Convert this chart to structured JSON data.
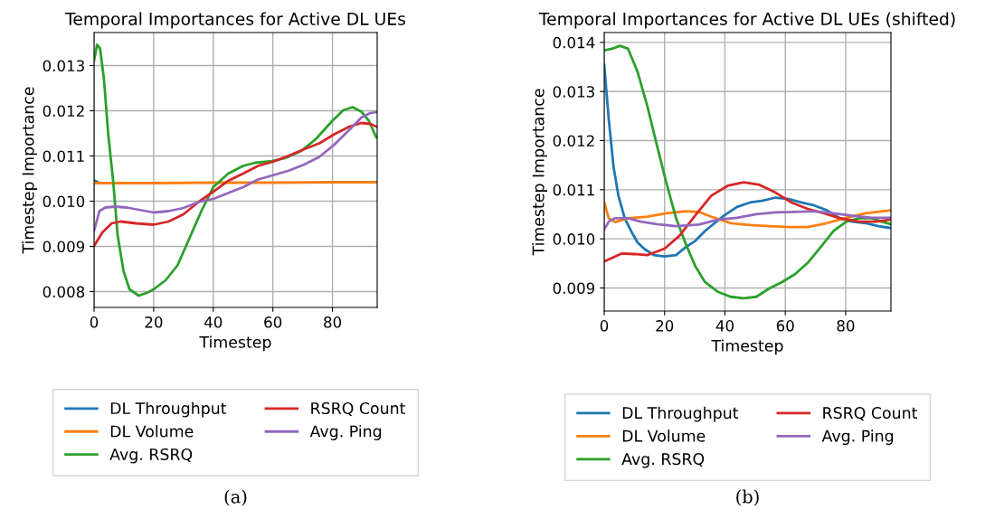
{
  "chart_data": [
    {
      "type": "line",
      "title": "Temporal Importances for Active DL UEs",
      "xlabel": "Timestep",
      "ylabel": "Timestep Importance",
      "xlim": [
        0,
        95
      ],
      "ylim": [
        0.00765,
        0.01373
      ],
      "xticks": [
        0,
        20,
        40,
        60,
        80
      ],
      "yticks": [
        0.008,
        0.009,
        {
          "value": 0.01,
          "label": "0.010"
        },
        0.011,
        0.012,
        0.013
      ],
      "grid": true,
      "legend": "bottom",
      "annotations": [
        "(a)"
      ],
      "series": [
        {
          "name": "DL Throughput",
          "color": "#1f77b4",
          "x": [
            0,
            1
          ],
          "values": [
            0.01046,
            0.01043
          ]
        },
        {
          "name": "DL Volume",
          "color": "#ff7f0e",
          "x": [
            0,
            20,
            40,
            60,
            80,
            95
          ],
          "values": [
            0.0104,
            0.0104,
            0.01041,
            0.01041,
            0.01042,
            0.01042
          ]
        },
        {
          "name": "Avg. RSRQ",
          "color": "#2ca02c",
          "x": [
            0,
            1,
            2,
            3.3,
            4.8,
            6.4,
            7.9,
            9.9,
            11.9,
            15,
            18,
            20,
            24,
            28,
            32,
            36,
            40,
            45,
            50,
            54,
            59,
            64,
            69.5,
            74.5,
            80,
            83.6,
            86.7,
            89.7,
            92.2,
            94.7
          ],
          "values": [
            0.01311,
            0.01346,
            0.01338,
            0.01271,
            0.01145,
            0.01045,
            0.00925,
            0.00845,
            0.00805,
            0.00791,
            0.00798,
            0.00805,
            0.00825,
            0.00858,
            0.00918,
            0.00978,
            0.01031,
            0.01061,
            0.01078,
            0.01085,
            0.01088,
            0.01095,
            0.01111,
            0.01138,
            0.01178,
            0.01201,
            0.01208,
            0.01198,
            0.01178,
            0.01141
          ]
        },
        {
          "name": "RSRQ Count",
          "color": "#d62728",
          "x": [
            0,
            2.8,
            5.9,
            8.9,
            14,
            20,
            25,
            30,
            35,
            40,
            45,
            50,
            55,
            60.4,
            65.5,
            70.5,
            75.6,
            80.6,
            85.7,
            89.7,
            92.7,
            94.7
          ],
          "values": [
            0.00901,
            0.00931,
            0.00951,
            0.00955,
            0.00951,
            0.00948,
            0.00955,
            0.00971,
            0.00998,
            0.01021,
            0.01045,
            0.01061,
            0.01078,
            0.01088,
            0.01101,
            0.01115,
            0.01128,
            0.01148,
            0.01165,
            0.01173,
            0.01171,
            0.01165
          ]
        },
        {
          "name": "Avg. Ping",
          "color": "#9467bd",
          "x": [
            0,
            1.8,
            3.8,
            6.9,
            11,
            15,
            20,
            25,
            30,
            35,
            40,
            45,
            50,
            55,
            60.4,
            65.5,
            70.5,
            75.6,
            80.6,
            85.7,
            89.7,
            92.7,
            94.7
          ],
          "values": [
            0.00935,
            0.00978,
            0.00986,
            0.00988,
            0.00986,
            0.00981,
            0.00975,
            0.00978,
            0.00985,
            0.00998,
            0.01005,
            0.01018,
            0.01031,
            0.01048,
            0.01058,
            0.01068,
            0.01081,
            0.01098,
            0.01125,
            0.01158,
            0.01185,
            0.01195,
            0.01197
          ]
        }
      ]
    },
    {
      "type": "line",
      "title": "Temporal Importances for Active DL UEs (shifted)",
      "xlabel": "Timestep",
      "ylabel": "Timestep Importance",
      "xlim": [
        0,
        95
      ],
      "ylim": [
        0.00853,
        0.0142
      ],
      "xticks": [
        0,
        20,
        40,
        60,
        80
      ],
      "yticks": [
        0.009,
        {
          "value": 0.01,
          "label": "0.010"
        },
        0.011,
        0.012,
        0.013,
        0.014
      ],
      "grid": true,
      "legend": "bottom",
      "annotations": [
        "(b)"
      ],
      "series": [
        {
          "name": "DL Throughput",
          "color": "#1f77b4",
          "x": [
            0,
            1.5,
            3.1,
            4.7,
            6.8,
            8.9,
            11,
            13.2,
            16.4,
            20,
            23.8,
            27,
            30.2,
            33.4,
            36.6,
            39.8,
            44,
            48.3,
            52.6,
            56.8,
            61.1,
            65.3,
            69.6,
            73.8,
            78.1,
            82.3,
            86.6,
            90.9,
            94.9
          ],
          "values": [
            0.01354,
            0.01244,
            0.01146,
            0.01088,
            0.01042,
            0.01016,
            0.00993,
            0.0098,
            0.00967,
            0.00964,
            0.00967,
            0.00983,
            0.00996,
            0.01016,
            0.01032,
            0.01048,
            0.01065,
            0.01074,
            0.01078,
            0.01084,
            0.01081,
            0.01074,
            0.01068,
            0.01058,
            0.01042,
            0.01035,
            0.01032,
            0.01026,
            0.01022
          ]
        },
        {
          "name": "DL Volume",
          "color": "#ff7f0e",
          "x": [
            0,
            1.5,
            3.6,
            7.9,
            14.3,
            20.6,
            27,
            31.3,
            35.5,
            41.9,
            48.3,
            54.7,
            61.1,
            67.4,
            73.8,
            80.2,
            86.6,
            94.9
          ],
          "values": [
            0.01074,
            0.01042,
            0.01034,
            0.01042,
            0.01045,
            0.01052,
            0.01056,
            0.01055,
            0.01045,
            0.01032,
            0.01028,
            0.01026,
            0.01024,
            0.01024,
            0.01032,
            0.01043,
            0.01052,
            0.01058
          ]
        },
        {
          "name": "Avg. RSRQ",
          "color": "#2ca02c",
          "x": [
            0,
            2.6,
            5.2,
            7.9,
            11,
            14.3,
            17.4,
            20.6,
            23.8,
            27,
            30.2,
            33.4,
            37.7,
            41.9,
            46.2,
            50.4,
            54.7,
            58.9,
            63.2,
            67.4,
            71.7,
            76,
            80.2,
            84.5,
            88.7,
            91.9,
            94.9
          ],
          "values": [
            0.01384,
            0.01387,
            0.01393,
            0.01387,
            0.01341,
            0.0127,
            0.01192,
            0.01114,
            0.01042,
            0.0099,
            0.00944,
            0.00912,
            0.00892,
            0.00882,
            0.00879,
            0.00882,
            0.00899,
            0.00912,
            0.00928,
            0.00951,
            0.00983,
            0.01016,
            0.01035,
            0.01042,
            0.01042,
            0.01035,
            0.0103
          ]
        },
        {
          "name": "RSRQ Count",
          "color": "#d62728",
          "x": [
            0,
            2.6,
            5.7,
            10,
            14.3,
            20,
            24.9,
            30.2,
            35.5,
            40.9,
            46.2,
            51.5,
            56.8,
            62.1,
            67.4,
            72.8,
            78.1,
            84.5,
            89.8,
            94.9
          ],
          "values": [
            0.00954,
            0.00961,
            0.0097,
            0.00969,
            0.00967,
            0.0098,
            0.01006,
            0.01048,
            0.01088,
            0.01108,
            0.01115,
            0.0111,
            0.01094,
            0.01074,
            0.01061,
            0.01052,
            0.01042,
            0.01035,
            0.01035,
            0.01039
          ]
        },
        {
          "name": "Avg. Ping",
          "color": "#9467bd",
          "x": [
            0,
            1.5,
            3.6,
            7.9,
            12.1,
            17.4,
            23.8,
            31.3,
            37.7,
            44,
            50.4,
            56.8,
            63.2,
            69.6,
            76,
            82.3,
            88.7,
            94.9
          ],
          "values": [
            0.01019,
            0.01035,
            0.01042,
            0.01042,
            0.01035,
            0.0103,
            0.01026,
            0.01029,
            0.01039,
            0.01043,
            0.0105,
            0.01054,
            0.01055,
            0.01056,
            0.01052,
            0.01047,
            0.01043,
            0.01043
          ]
        }
      ]
    }
  ]
}
